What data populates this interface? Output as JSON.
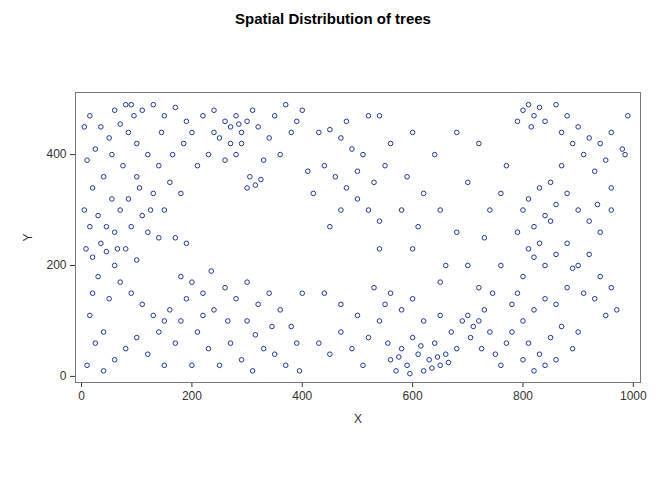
{
  "chart_data": {
    "type": "scatter",
    "title": "Spatial Distribution of trees",
    "x_label": "X",
    "y_label": "Y",
    "color": "#1c3a94",
    "marker": "open_circle",
    "grid": false,
    "xlim": [
      -11,
      1013
    ],
    "ylim": [
      -11,
      512
    ],
    "xticks": [
      0,
      200,
      400,
      600,
      800,
      1000
    ],
    "yticks": [
      0,
      200,
      400
    ],
    "x": [
      10,
      25,
      40,
      15,
      50,
      30,
      8,
      20,
      35,
      45,
      60,
      15,
      30,
      70,
      55,
      20,
      40,
      10,
      25,
      50,
      35,
      15,
      60,
      80,
      95,
      110,
      130,
      150,
      170,
      190,
      85,
      100,
      120,
      140,
      160,
      180,
      100,
      75,
      130,
      150,
      110,
      90,
      120,
      140,
      170,
      190,
      80,
      100,
      60,
      70,
      90,
      110,
      130,
      150,
      160,
      140,
      100,
      80,
      60,
      120,
      150,
      170,
      190,
      180,
      40,
      20,
      5,
      45,
      65,
      85,
      105,
      125,
      165,
      185,
      200,
      55,
      5,
      70,
      90,
      145,
      220,
      240,
      260,
      270,
      280,
      290,
      300,
      310,
      320,
      290,
      270,
      250,
      305,
      315,
      325,
      300,
      230,
      210,
      350,
      370,
      390,
      340,
      360,
      330,
      280,
      260,
      240,
      380,
      400,
      285,
      200,
      220,
      180,
      240,
      260,
      280,
      300,
      320,
      340,
      360,
      210,
      230,
      250,
      270,
      290,
      310,
      330,
      350,
      370,
      390,
      200,
      220,
      300,
      380,
      400,
      395,
      345,
      265,
      235,
      315,
      430,
      450,
      470,
      490,
      510,
      440,
      460,
      480,
      500,
      520,
      540,
      470,
      450,
      500,
      530,
      550,
      560,
      480,
      520,
      540,
      420,
      410,
      600,
      590,
      620,
      580,
      640,
      610,
      600,
      540,
      430,
      450,
      470,
      490,
      510,
      520,
      540,
      560,
      570,
      580,
      590,
      600,
      610,
      620,
      630,
      640,
      650,
      660,
      670,
      680,
      690,
      700,
      710,
      720,
      730,
      740,
      750,
      760,
      770,
      780,
      550,
      560,
      580,
      620,
      650,
      600,
      530,
      470,
      440,
      500,
      575,
      595,
      635,
      645,
      665,
      615,
      555,
      705,
      725,
      745,
      650,
      680,
      700,
      720,
      740,
      760,
      700,
      660,
      730,
      770,
      790,
      680,
      720,
      650,
      760,
      800,
      810,
      820,
      830,
      840,
      860,
      880,
      900,
      920,
      940,
      960,
      980,
      990,
      950,
      930,
      910,
      890,
      870,
      850,
      830,
      810,
      800,
      820,
      840,
      860,
      880,
      900,
      920,
      940,
      960,
      850,
      810,
      820,
      830,
      840,
      800,
      860,
      880,
      890,
      900,
      920,
      940,
      960,
      970,
      950,
      930,
      910,
      880,
      860,
      840,
      820,
      800,
      780,
      810,
      830,
      850,
      870,
      890,
      820,
      840,
      860,
      900,
      800,
      790,
      985,
      870,
      815,
      960,
      935,
      790
    ],
    "values": [
      20,
      60,
      10,
      110,
      140,
      180,
      230,
      215,
      240,
      225,
      260,
      270,
      290,
      300,
      320,
      340,
      360,
      390,
      410,
      430,
      450,
      470,
      480,
      490,
      470,
      480,
      490,
      470,
      485,
      460,
      440,
      420,
      400,
      380,
      350,
      330,
      360,
      380,
      330,
      300,
      290,
      270,
      260,
      250,
      250,
      240,
      230,
      210,
      200,
      170,
      150,
      130,
      110,
      100,
      120,
      80,
      70,
      50,
      30,
      40,
      20,
      60,
      140,
      100,
      80,
      150,
      300,
      270,
      230,
      320,
      340,
      300,
      400,
      420,
      440,
      400,
      450,
      455,
      490,
      440,
      470,
      480,
      460,
      450,
      470,
      440,
      460,
      480,
      450,
      420,
      420,
      430,
      360,
      345,
      355,
      340,
      400,
      380,
      470,
      490,
      460,
      430,
      400,
      390,
      400,
      390,
      440,
      440,
      480,
      455,
      170,
      150,
      180,
      120,
      160,
      140,
      100,
      130,
      150,
      120,
      80,
      50,
      20,
      60,
      30,
      10,
      50,
      40,
      20,
      60,
      20,
      110,
      170,
      90,
      150,
      10,
      90,
      100,
      190,
      75,
      440,
      445,
      430,
      410,
      400,
      380,
      360,
      340,
      320,
      300,
      280,
      300,
      270,
      370,
      350,
      380,
      420,
      460,
      470,
      470,
      330,
      370,
      440,
      360,
      330,
      300,
      400,
      270,
      230,
      230,
      60,
      40,
      80,
      50,
      20,
      70,
      100,
      30,
      10,
      50,
      20,
      70,
      40,
      10,
      30,
      60,
      20,
      40,
      80,
      50,
      100,
      110,
      90,
      100,
      120,
      80,
      40,
      20,
      60,
      130,
      130,
      150,
      120,
      100,
      110,
      140,
      160,
      130,
      150,
      110,
      35,
      5,
      15,
      35,
      25,
      55,
      60,
      70,
      50,
      150,
      300,
      260,
      350,
      420,
      300,
      200,
      200,
      200,
      250,
      380,
      460,
      440,
      160,
      170,
      330,
      480,
      490,
      470,
      485,
      460,
      490,
      470,
      450,
      430,
      420,
      440,
      410,
      470,
      390,
      370,
      400,
      420,
      380,
      350,
      340,
      320,
      300,
      270,
      290,
      310,
      330,
      300,
      280,
      260,
      300,
      280,
      230,
      215,
      240,
      200,
      180,
      220,
      240,
      195,
      200,
      220,
      180,
      160,
      120,
      110,
      140,
      150,
      160,
      130,
      140,
      120,
      100,
      80,
      60,
      40,
      70,
      90,
      50,
      10,
      20,
      30,
      80,
      30,
      150,
      400,
      440,
      450,
      340,
      310,
      260
    ]
  }
}
